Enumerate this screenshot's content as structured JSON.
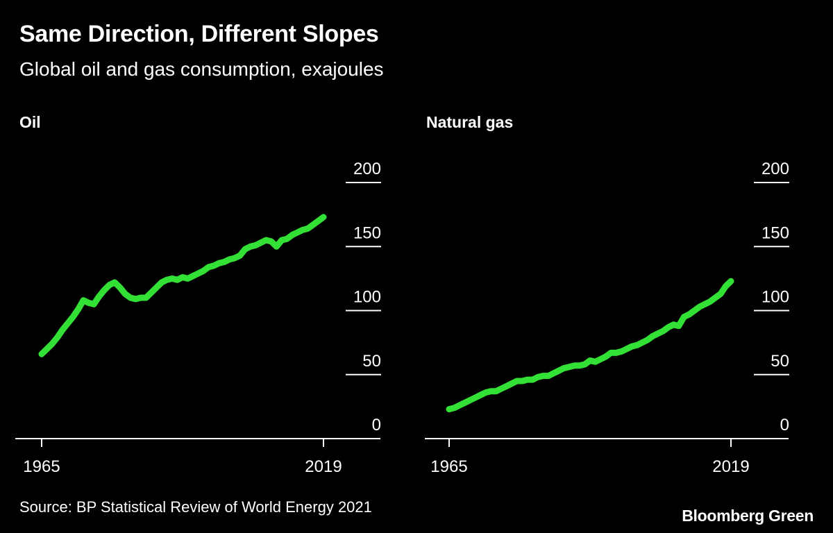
{
  "header": {
    "title": "Same Direction, Different Slopes",
    "subtitle": "Global oil and gas consumption, exajoules"
  },
  "footer": {
    "source": "Source: BP Statistical Review of World Energy 2021",
    "brand": "Bloomberg Green"
  },
  "colors": {
    "background": "#000000",
    "line": "#33E035",
    "text": "#FFFFFF"
  },
  "chart_data": [
    {
      "type": "line",
      "title": "Oil",
      "series": [
        {
          "name": "Oil",
          "x": [
            1965,
            1966,
            1967,
            1968,
            1969,
            1970,
            1971,
            1972,
            1973,
            1974,
            1975,
            1976,
            1977,
            1978,
            1979,
            1980,
            1981,
            1982,
            1983,
            1984,
            1985,
            1986,
            1987,
            1988,
            1989,
            1990,
            1991,
            1992,
            1993,
            1994,
            1995,
            1996,
            1997,
            1998,
            1999,
            2000,
            2001,
            2002,
            2003,
            2004,
            2005,
            2006,
            2007,
            2008,
            2009,
            2010,
            2011,
            2012,
            2013,
            2014,
            2015,
            2016,
            2017,
            2018,
            2019
          ],
          "values": [
            66,
            70,
            74,
            79,
            85,
            90,
            95,
            101,
            108,
            106,
            105,
            111,
            116,
            120,
            122,
            118,
            113,
            110,
            109,
            110,
            110,
            114,
            118,
            122,
            124,
            125,
            124,
            126,
            125,
            127,
            129,
            131,
            134,
            135,
            137,
            138,
            140,
            141,
            143,
            148,
            150,
            151,
            153,
            155,
            154,
            150,
            155,
            156,
            159,
            161,
            163,
            164,
            167,
            170,
            173
          ]
        }
      ],
      "xlabel": "",
      "ylabel": "",
      "xlim": [
        1965,
        2019
      ],
      "ylim": [
        0,
        200
      ],
      "x_tick_labels": [
        "1965",
        "2019"
      ],
      "y_tick_labels": [
        "0",
        "50",
        "100",
        "150",
        "200"
      ]
    },
    {
      "type": "line",
      "title": "Natural gas",
      "series": [
        {
          "name": "Natural gas",
          "x": [
            1965,
            1966,
            1967,
            1968,
            1969,
            1970,
            1971,
            1972,
            1973,
            1974,
            1975,
            1976,
            1977,
            1978,
            1979,
            1980,
            1981,
            1982,
            1983,
            1984,
            1985,
            1986,
            1987,
            1988,
            1989,
            1990,
            1991,
            1992,
            1993,
            1994,
            1995,
            1996,
            1997,
            1998,
            1999,
            2000,
            2001,
            2002,
            2003,
            2004,
            2005,
            2006,
            2007,
            2008,
            2009,
            2010,
            2011,
            2012,
            2013,
            2014,
            2015,
            2016,
            2017,
            2018,
            2019
          ],
          "values": [
            23,
            24,
            26,
            28,
            30,
            32,
            34,
            36,
            37,
            37,
            39,
            41,
            43,
            45,
            45,
            46,
            46,
            48,
            49,
            49,
            51,
            53,
            55,
            56,
            57,
            57,
            58,
            61,
            60,
            62,
            64,
            67,
            67,
            68,
            70,
            72,
            73,
            75,
            77,
            80,
            82,
            84,
            87,
            89,
            88,
            95,
            97,
            100,
            103,
            105,
            107,
            110,
            113,
            119,
            123
          ]
        }
      ],
      "xlabel": "",
      "ylabel": "",
      "xlim": [
        1965,
        2019
      ],
      "ylim": [
        0,
        200
      ],
      "x_tick_labels": [
        "1965",
        "2019"
      ],
      "y_tick_labels": [
        "0",
        "50",
        "100",
        "150",
        "200"
      ]
    }
  ]
}
